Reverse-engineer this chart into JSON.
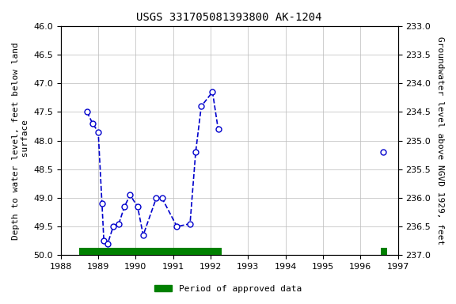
{
  "title": "USGS 331705081393800 AK-1204",
  "ylabel_left": "Depth to water level, feet below land\n surface",
  "ylabel_right": "Groundwater level above NGVD 1929, feet",
  "xlim": [
    1988,
    1997
  ],
  "ylim_left": [
    46.0,
    50.0
  ],
  "ylim_right": [
    237.0,
    233.0
  ],
  "yticks_left": [
    46.0,
    46.5,
    47.0,
    47.5,
    48.0,
    48.5,
    49.0,
    49.5,
    50.0
  ],
  "yticks_right": [
    237.0,
    236.5,
    236.0,
    235.5,
    235.0,
    234.5,
    234.0,
    233.5,
    233.0
  ],
  "xticks": [
    1988,
    1989,
    1990,
    1991,
    1992,
    1993,
    1994,
    1995,
    1996,
    1997
  ],
  "segments": [
    {
      "x": [
        1988.7,
        1988.85,
        1989.0,
        1989.1,
        1989.15,
        1989.25,
        1989.4,
        1989.55,
        1989.7,
        1989.85,
        1990.05,
        1990.2,
        1990.55,
        1990.7,
        1991.1,
        1991.45,
        1991.6,
        1991.75,
        1992.05,
        1992.2
      ],
      "y": [
        47.5,
        47.7,
        47.85,
        49.1,
        49.75,
        49.8,
        49.5,
        49.45,
        49.15,
        48.95,
        49.15,
        49.65,
        49.0,
        49.0,
        49.5,
        49.45,
        48.2,
        47.4,
        47.15,
        47.8
      ]
    },
    {
      "x": [
        1996.6
      ],
      "y": [
        48.2
      ]
    }
  ],
  "line_color": "#0000cc",
  "marker_facecolor": "#ffffff",
  "marker_edgecolor": "#0000cc",
  "marker_size": 5,
  "line_style": "--",
  "line_width": 1.2,
  "grid_color": "#bbbbbb",
  "bg_color": "#ffffff",
  "green_bars": [
    {
      "xstart": 1988.5,
      "xend": 1992.3
    },
    {
      "xstart": 1996.55,
      "xend": 1996.72
    }
  ],
  "green_color": "#008000",
  "green_bar_y": 50.0,
  "green_bar_height": 0.13,
  "legend_label": "Period of approved data",
  "title_fontsize": 10,
  "axis_label_fontsize": 8,
  "tick_fontsize": 8
}
